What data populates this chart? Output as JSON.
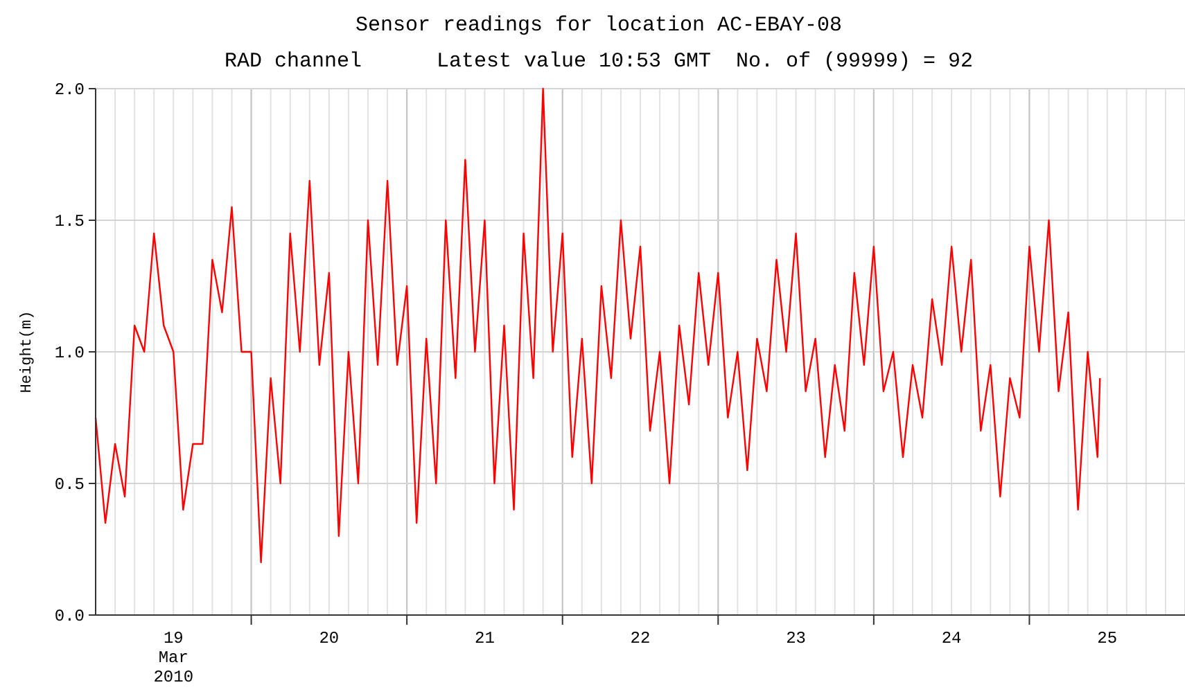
{
  "chart_data": {
    "type": "line",
    "title": "Sensor readings for location AC-EBAY-08",
    "subtitle": "RAD channel      Latest value 10:53 GMT  No. of (99999) = 92",
    "ylabel": "Height(m)",
    "xlim": [
      "2010-03-19T00:00",
      "2010-03-26T00:00"
    ],
    "xticks": [
      {
        "value": "2010-03-19T12:00",
        "label": "19\nMar\n2010"
      },
      {
        "value": "2010-03-20T00:00",
        "label": null
      },
      {
        "value": "2010-03-20T12:00",
        "label": "20"
      },
      {
        "value": "2010-03-21T00:00",
        "label": null
      },
      {
        "value": "2010-03-21T12:00",
        "label": "21"
      },
      {
        "value": "2010-03-22T00:00",
        "label": null
      },
      {
        "value": "2010-03-22T12:00",
        "label": "22"
      },
      {
        "value": "2010-03-23T00:00",
        "label": null
      },
      {
        "value": "2010-03-23T12:00",
        "label": "23"
      },
      {
        "value": "2010-03-24T00:00",
        "label": null
      },
      {
        "value": "2010-03-24T12:00",
        "label": "24"
      },
      {
        "value": "2010-03-25T00:00",
        "label": null
      },
      {
        "value": "2010-03-25T12:00",
        "label": "25"
      }
    ],
    "ylim": [
      0,
      2
    ],
    "yticks": [
      {
        "value": 0,
        "label": "0.0"
      },
      {
        "value": 0.5,
        "label": "0.5"
      },
      {
        "value": 1,
        "label": "1.0"
      },
      {
        "value": 1.5,
        "label": "1.5"
      },
      {
        "value": 2,
        "label": "2.0"
      }
    ],
    "grid": true,
    "x": [
      "2010-03-19T00:00",
      "2010-03-19T01:30",
      "2010-03-19T03:00",
      "2010-03-19T04:30",
      "2010-03-19T06:00",
      "2010-03-19T07:30",
      "2010-03-19T09:00",
      "2010-03-19T10:30",
      "2010-03-19T12:00",
      "2010-03-19T13:30",
      "2010-03-19T15:00",
      "2010-03-19T16:30",
      "2010-03-19T18:00",
      "2010-03-19T19:30",
      "2010-03-19T21:00",
      "2010-03-19T22:30",
      "2010-03-20T00:00",
      "2010-03-20T01:30",
      "2010-03-20T03:00",
      "2010-03-20T04:30",
      "2010-03-20T06:00",
      "2010-03-20T07:30",
      "2010-03-20T09:00",
      "2010-03-20T10:30",
      "2010-03-20T12:00",
      "2010-03-20T13:30",
      "2010-03-20T15:00",
      "2010-03-20T16:30",
      "2010-03-20T18:00",
      "2010-03-20T19:30",
      "2010-03-20T21:00",
      "2010-03-20T22:30",
      "2010-03-21T00:00",
      "2010-03-21T01:30",
      "2010-03-21T03:00",
      "2010-03-21T04:30",
      "2010-03-21T06:00",
      "2010-03-21T07:30",
      "2010-03-21T09:00",
      "2010-03-21T10:30",
      "2010-03-21T12:00",
      "2010-03-21T13:30",
      "2010-03-21T15:00",
      "2010-03-21T16:30",
      "2010-03-21T18:00",
      "2010-03-21T19:30",
      "2010-03-21T21:00",
      "2010-03-21T22:30",
      "2010-03-22T00:00",
      "2010-03-22T01:30",
      "2010-03-22T03:00",
      "2010-03-22T04:30",
      "2010-03-22T06:00",
      "2010-03-22T07:30",
      "2010-03-22T09:00",
      "2010-03-22T10:30",
      "2010-03-22T12:00",
      "2010-03-22T13:30",
      "2010-03-22T15:00",
      "2010-03-22T16:30",
      "2010-03-22T18:00",
      "2010-03-22T19:30",
      "2010-03-22T21:00",
      "2010-03-22T22:30",
      "2010-03-23T00:00",
      "2010-03-23T01:30",
      "2010-03-23T03:00",
      "2010-03-23T04:30",
      "2010-03-23T06:00",
      "2010-03-23T07:30",
      "2010-03-23T09:00",
      "2010-03-23T10:30",
      "2010-03-23T12:00",
      "2010-03-23T13:30",
      "2010-03-23T15:00",
      "2010-03-23T16:30",
      "2010-03-23T18:00",
      "2010-03-23T19:30",
      "2010-03-23T21:00",
      "2010-03-23T22:30",
      "2010-03-24T00:00",
      "2010-03-24T01:30",
      "2010-03-24T03:00",
      "2010-03-24T04:30",
      "2010-03-24T06:00",
      "2010-03-24T07:30",
      "2010-03-24T09:00",
      "2010-03-24T10:30",
      "2010-03-24T12:00",
      "2010-03-24T13:30",
      "2010-03-24T15:00",
      "2010-03-24T16:30",
      "2010-03-24T18:00",
      "2010-03-24T19:30",
      "2010-03-24T21:00",
      "2010-03-24T22:30",
      "2010-03-25T00:00",
      "2010-03-25T01:30",
      "2010-03-25T03:00",
      "2010-03-25T04:30",
      "2010-03-25T06:00",
      "2010-03-25T07:30",
      "2010-03-25T09:00",
      "2010-03-25T10:30",
      "2010-03-25T10:53"
    ],
    "series": [
      {
        "color": "#ff0000",
        "values": [
          0.75,
          0.35,
          0.65,
          0.45,
          1.1,
          1.0,
          1.45,
          1.1,
          1.0,
          0.4,
          0.65,
          0.65,
          1.35,
          1.15,
          1.55,
          1.0,
          1.0,
          0.2,
          0.9,
          0.5,
          1.45,
          1.0,
          1.65,
          0.95,
          1.3,
          0.3,
          1.0,
          0.5,
          1.5,
          0.95,
          1.65,
          0.95,
          1.25,
          0.35,
          1.05,
          0.5,
          1.5,
          0.9,
          1.73,
          1.0,
          1.5,
          0.5,
          1.1,
          0.4,
          1.45,
          0.9,
          2.0,
          1.0,
          1.45,
          0.6,
          1.05,
          0.5,
          1.25,
          0.9,
          1.5,
          1.05,
          1.4,
          0.7,
          1.0,
          0.5,
          1.1,
          0.8,
          1.3,
          0.95,
          1.3,
          0.75,
          1.0,
          0.55,
          1.05,
          0.85,
          1.35,
          1.0,
          1.45,
          0.85,
          1.05,
          0.6,
          0.95,
          0.7,
          1.3,
          0.95,
          1.4,
          0.85,
          1.0,
          0.6,
          0.95,
          0.75,
          1.2,
          0.95,
          1.4,
          1.0,
          1.35,
          0.7,
          0.95,
          0.45,
          0.9,
          0.75,
          1.4,
          1.0,
          1.5,
          0.85,
          1.15,
          0.4,
          1.0,
          0.6,
          0.9
        ]
      }
    ]
  }
}
